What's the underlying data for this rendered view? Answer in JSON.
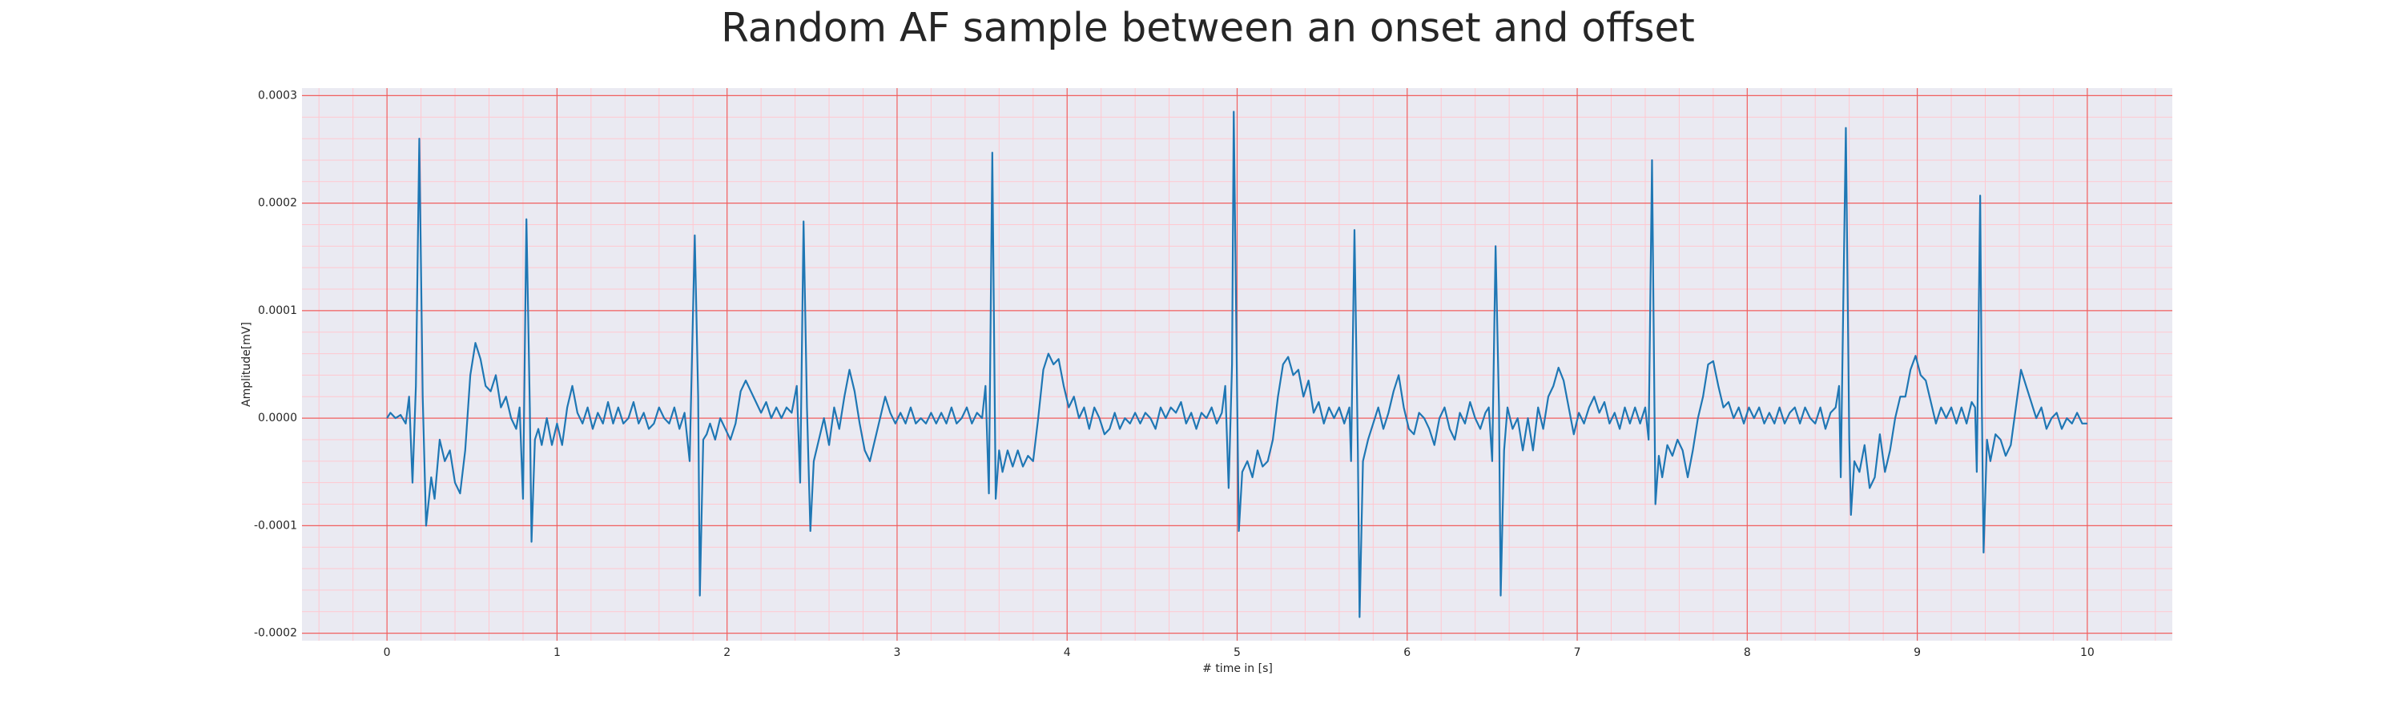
{
  "chart_data": {
    "type": "line",
    "title": "Random AF sample between an onset and offset",
    "xlabel": "# time in [s]",
    "ylabel": "Amplitude[mV]",
    "color": "#1f77b4",
    "grid": true,
    "minor_grid": true,
    "xlim": [
      -0.5,
      10.5
    ],
    "ylim": [
      -0.000207,
      0.000307
    ],
    "xticks": [
      0,
      1,
      2,
      3,
      4,
      5,
      6,
      7,
      8,
      9,
      10
    ],
    "yticks": [
      {
        "value": -0.0002,
        "label": "-0.0002"
      },
      {
        "value": -0.0001,
        "label": "-0.0001"
      },
      {
        "value": 0,
        "label": "0.0000"
      },
      {
        "value": 0.0001,
        "label": "0.0001"
      },
      {
        "value": 0.0002,
        "label": "0.0002"
      },
      {
        "value": 0.0003,
        "label": "0.0003"
      }
    ],
    "x": [
      0,
      0.02,
      0.05,
      0.08,
      0.11,
      0.13,
      0.15,
      0.17,
      0.19,
      0.21,
      0.23,
      0.26,
      0.28,
      0.31,
      0.34,
      0.37,
      0.4,
      0.43,
      0.46,
      0.49,
      0.52,
      0.55,
      0.58,
      0.61,
      0.64,
      0.67,
      0.7,
      0.73,
      0.76,
      0.78,
      0.8,
      0.82,
      0.84,
      0.85,
      0.87,
      0.89,
      0.91,
      0.94,
      0.97,
      1.0,
      1.03,
      1.06,
      1.09,
      1.12,
      1.15,
      1.18,
      1.21,
      1.24,
      1.27,
      1.3,
      1.33,
      1.36,
      1.39,
      1.42,
      1.45,
      1.48,
      1.51,
      1.54,
      1.57,
      1.6,
      1.63,
      1.66,
      1.69,
      1.72,
      1.75,
      1.78,
      1.81,
      1.83,
      1.84,
      1.86,
      1.88,
      1.9,
      1.93,
      1.96,
      1.99,
      2.02,
      2.05,
      2.08,
      2.11,
      2.14,
      2.17,
      2.2,
      2.23,
      2.26,
      2.29,
      2.32,
      2.35,
      2.38,
      2.41,
      2.43,
      2.45,
      2.47,
      2.49,
      2.51,
      2.54,
      2.57,
      2.6,
      2.63,
      2.66,
      2.69,
      2.72,
      2.75,
      2.78,
      2.81,
      2.84,
      2.87,
      2.9,
      2.93,
      2.96,
      2.99,
      3.02,
      3.05,
      3.08,
      3.11,
      3.14,
      3.17,
      3.2,
      3.23,
      3.26,
      3.29,
      3.32,
      3.35,
      3.38,
      3.41,
      3.44,
      3.47,
      3.5,
      3.52,
      3.54,
      3.56,
      3.58,
      3.6,
      3.62,
      3.65,
      3.68,
      3.71,
      3.74,
      3.77,
      3.8,
      3.83,
      3.86,
      3.89,
      3.92,
      3.95,
      3.98,
      4.01,
      4.04,
      4.07,
      4.1,
      4.13,
      4.16,
      4.19,
      4.22,
      4.25,
      4.28,
      4.31,
      4.34,
      4.37,
      4.4,
      4.43,
      4.46,
      4.49,
      4.52,
      4.55,
      4.58,
      4.61,
      4.64,
      4.67,
      4.7,
      4.73,
      4.76,
      4.79,
      4.82,
      4.85,
      4.88,
      4.91,
      4.93,
      4.95,
      4.97,
      4.98,
      5.0,
      5.01,
      5.03,
      5.06,
      5.09,
      5.12,
      5.15,
      5.18,
      5.21,
      5.24,
      5.27,
      5.3,
      5.33,
      5.36,
      5.39,
      5.42,
      5.45,
      5.48,
      5.51,
      5.54,
      5.57,
      5.6,
      5.63,
      5.66,
      5.67,
      5.69,
      5.71,
      5.72,
      5.74,
      5.77,
      5.8,
      5.83,
      5.86,
      5.89,
      5.92,
      5.95,
      5.98,
      6.01,
      6.04,
      6.07,
      6.1,
      6.13,
      6.16,
      6.19,
      6.22,
      6.25,
      6.28,
      6.31,
      6.34,
      6.37,
      6.4,
      6.43,
      6.46,
      6.48,
      6.5,
      6.52,
      6.54,
      6.55,
      6.57,
      6.59,
      6.62,
      6.65,
      6.68,
      6.71,
      6.74,
      6.77,
      6.8,
      6.83,
      6.86,
      6.89,
      6.92,
      6.95,
      6.98,
      7.01,
      7.04,
      7.07,
      7.1,
      7.13,
      7.16,
      7.19,
      7.22,
      7.25,
      7.28,
      7.31,
      7.34,
      7.37,
      7.4,
      7.42,
      7.44,
      7.46,
      7.48,
      7.5,
      7.53,
      7.56,
      7.59,
      7.62,
      7.65,
      7.68,
      7.71,
      7.74,
      7.77,
      7.8,
      7.83,
      7.86,
      7.89,
      7.92,
      7.95,
      7.98,
      8.01,
      8.04,
      8.07,
      8.1,
      8.13,
      8.16,
      8.19,
      8.22,
      8.25,
      8.28,
      8.31,
      8.34,
      8.37,
      8.4,
      8.43,
      8.46,
      8.49,
      8.52,
      8.54,
      8.55,
      8.58,
      8.6,
      8.61,
      8.63,
      8.66,
      8.69,
      8.72,
      8.75,
      8.78,
      8.81,
      8.84,
      8.87,
      8.9,
      8.93,
      8.96,
      8.99,
      9.02,
      9.05,
      9.08,
      9.11,
      9.14,
      9.17,
      9.2,
      9.23,
      9.26,
      9.29,
      9.32,
      9.34,
      9.35,
      9.37,
      9.38,
      9.39,
      9.41,
      9.43,
      9.46,
      9.49,
      9.52,
      9.55,
      9.58,
      9.61,
      9.64,
      9.67,
      9.7,
      9.73,
      9.76,
      9.79,
      9.82,
      9.85,
      9.88,
      9.91,
      9.94,
      9.97,
      10.0
    ],
    "values": [
      0,
      5e-06,
      0,
      3e-06,
      -5e-06,
      2e-05,
      -6e-05,
      3e-05,
      0.00026,
      2e-05,
      -0.0001,
      -5.5e-05,
      -7.5e-05,
      -2e-05,
      -4e-05,
      -3e-05,
      -6e-05,
      -7e-05,
      -3e-05,
      4e-05,
      7e-05,
      5.5e-05,
      3e-05,
      2.5e-05,
      4e-05,
      1e-05,
      2e-05,
      0,
      -1e-05,
      1e-05,
      -7.5e-05,
      0.000185,
      1e-05,
      -0.000115,
      -2e-05,
      -1e-05,
      -2.5e-05,
      0,
      -2.5e-05,
      -5e-06,
      -2.5e-05,
      1e-05,
      3e-05,
      5e-06,
      -5e-06,
      1e-05,
      -1e-05,
      5e-06,
      -5e-06,
      1.5e-05,
      -5e-06,
      1e-05,
      -5e-06,
      0,
      1.5e-05,
      -5e-06,
      5e-06,
      -1e-05,
      -5e-06,
      1e-05,
      0,
      -5e-06,
      1e-05,
      -1e-05,
      5e-06,
      -4e-05,
      0.00017,
      2e-05,
      -0.000165,
      -2e-05,
      -1.5e-05,
      -5e-06,
      -2e-05,
      0,
      -1e-05,
      -2e-05,
      -5e-06,
      2.5e-05,
      3.5e-05,
      2.5e-05,
      1.5e-05,
      5e-06,
      1.5e-05,
      0,
      1e-05,
      0,
      1e-05,
      5e-06,
      3e-05,
      -6e-05,
      0.000183,
      1e-05,
      -0.000105,
      -4e-05,
      -2e-05,
      0,
      -2.5e-05,
      1e-05,
      -1e-05,
      2e-05,
      4.5e-05,
      2.5e-05,
      -5e-06,
      -3e-05,
      -4e-05,
      -2e-05,
      0,
      2e-05,
      5e-06,
      -5e-06,
      5e-06,
      -5e-06,
      1e-05,
      -5e-06,
      0,
      -5e-06,
      5e-06,
      -5e-06,
      5e-06,
      -5e-06,
      1e-05,
      -5e-06,
      0,
      1e-05,
      -5e-06,
      5e-06,
      0,
      3e-05,
      -7e-05,
      0.000247,
      -7.5e-05,
      -3e-05,
      -5e-05,
      -3e-05,
      -4.5e-05,
      -3e-05,
      -4.5e-05,
      -3.5e-05,
      -4e-05,
      0,
      4.5e-05,
      6e-05,
      5e-05,
      5.5e-05,
      3e-05,
      1e-05,
      2e-05,
      0,
      1e-05,
      -1e-05,
      1e-05,
      0,
      -1.5e-05,
      -1e-05,
      5e-06,
      -1e-05,
      0,
      -5e-06,
      5e-06,
      -5e-06,
      5e-06,
      0,
      -1e-05,
      1e-05,
      0,
      1e-05,
      5e-06,
      1.5e-05,
      -5e-06,
      5e-06,
      -1e-05,
      5e-06,
      0,
      1e-05,
      -5e-06,
      5e-06,
      3e-05,
      -6.5e-05,
      5e-05,
      0.000285,
      2e-05,
      -0.000105,
      -5e-05,
      -4e-05,
      -5.5e-05,
      -3e-05,
      -4.5e-05,
      -4e-05,
      -2e-05,
      2e-05,
      5e-05,
      5.7e-05,
      4e-05,
      4.5e-05,
      2e-05,
      3.5e-05,
      5e-06,
      1.5e-05,
      -5e-06,
      1e-05,
      0,
      1e-05,
      -5e-06,
      1e-05,
      -4e-05,
      0.000175,
      -3e-05,
      -0.000185,
      -4e-05,
      -2e-05,
      -5e-06,
      1e-05,
      -1e-05,
      5e-06,
      2.5e-05,
      4e-05,
      1e-05,
      -1e-05,
      -1.5e-05,
      5e-06,
      0,
      -1e-05,
      -2.5e-05,
      0,
      1e-05,
      -1e-05,
      -2e-05,
      5e-06,
      -5e-06,
      1.5e-05,
      0,
      -1e-05,
      5e-06,
      1e-05,
      -4e-05,
      0.00016,
      1e-05,
      -0.000165,
      -3e-05,
      1e-05,
      -1e-05,
      0,
      -3e-05,
      0,
      -3e-05,
      1e-05,
      -1e-05,
      2e-05,
      3e-05,
      4.7e-05,
      3.5e-05,
      1e-05,
      -1.5e-05,
      5e-06,
      -5e-06,
      1e-05,
      2e-05,
      5e-06,
      1.5e-05,
      -5e-06,
      5e-06,
      -1e-05,
      1e-05,
      -5e-06,
      1e-05,
      -5e-06,
      1e-05,
      -2e-05,
      0.00024,
      -8e-05,
      -3.5e-05,
      -5.5e-05,
      -2.5e-05,
      -3.5e-05,
      -2e-05,
      -3e-05,
      -5.5e-05,
      -3e-05,
      0,
      2e-05,
      5e-05,
      5.3e-05,
      3e-05,
      1e-05,
      1.5e-05,
      0,
      1e-05,
      -5e-06,
      1e-05,
      0,
      1e-05,
      -5e-06,
      5e-06,
      -5e-06,
      1e-05,
      -5e-06,
      5e-06,
      1e-05,
      -5e-06,
      1e-05,
      0,
      -5e-06,
      1e-05,
      -1e-05,
      5e-06,
      1e-05,
      3e-05,
      -5.5e-05,
      0.00027,
      -2e-05,
      -9e-05,
      -4e-05,
      -5e-05,
      -2.5e-05,
      -6.5e-05,
      -5.5e-05,
      -1.5e-05,
      -5e-05,
      -3e-05,
      0,
      2e-05,
      2e-05,
      4.5e-05,
      5.8e-05,
      4e-05,
      3.5e-05,
      1.5e-05,
      -5e-06,
      1e-05,
      0,
      1e-05,
      -5e-06,
      1e-05,
      -5e-06,
      1.5e-05,
      1e-05,
      -5e-05,
      0.000207,
      1e-05,
      -0.000125,
      -2e-05,
      -4e-05,
      -1.5e-05,
      -2e-05,
      -3.5e-05,
      -2.5e-05,
      1e-05,
      4.5e-05,
      3e-05,
      1.5e-05,
      0,
      1e-05,
      -1e-05,
      0,
      5e-06,
      -1e-05,
      0,
      -5e-06,
      5e-06,
      -5e-06,
      -5e-06
    ]
  }
}
